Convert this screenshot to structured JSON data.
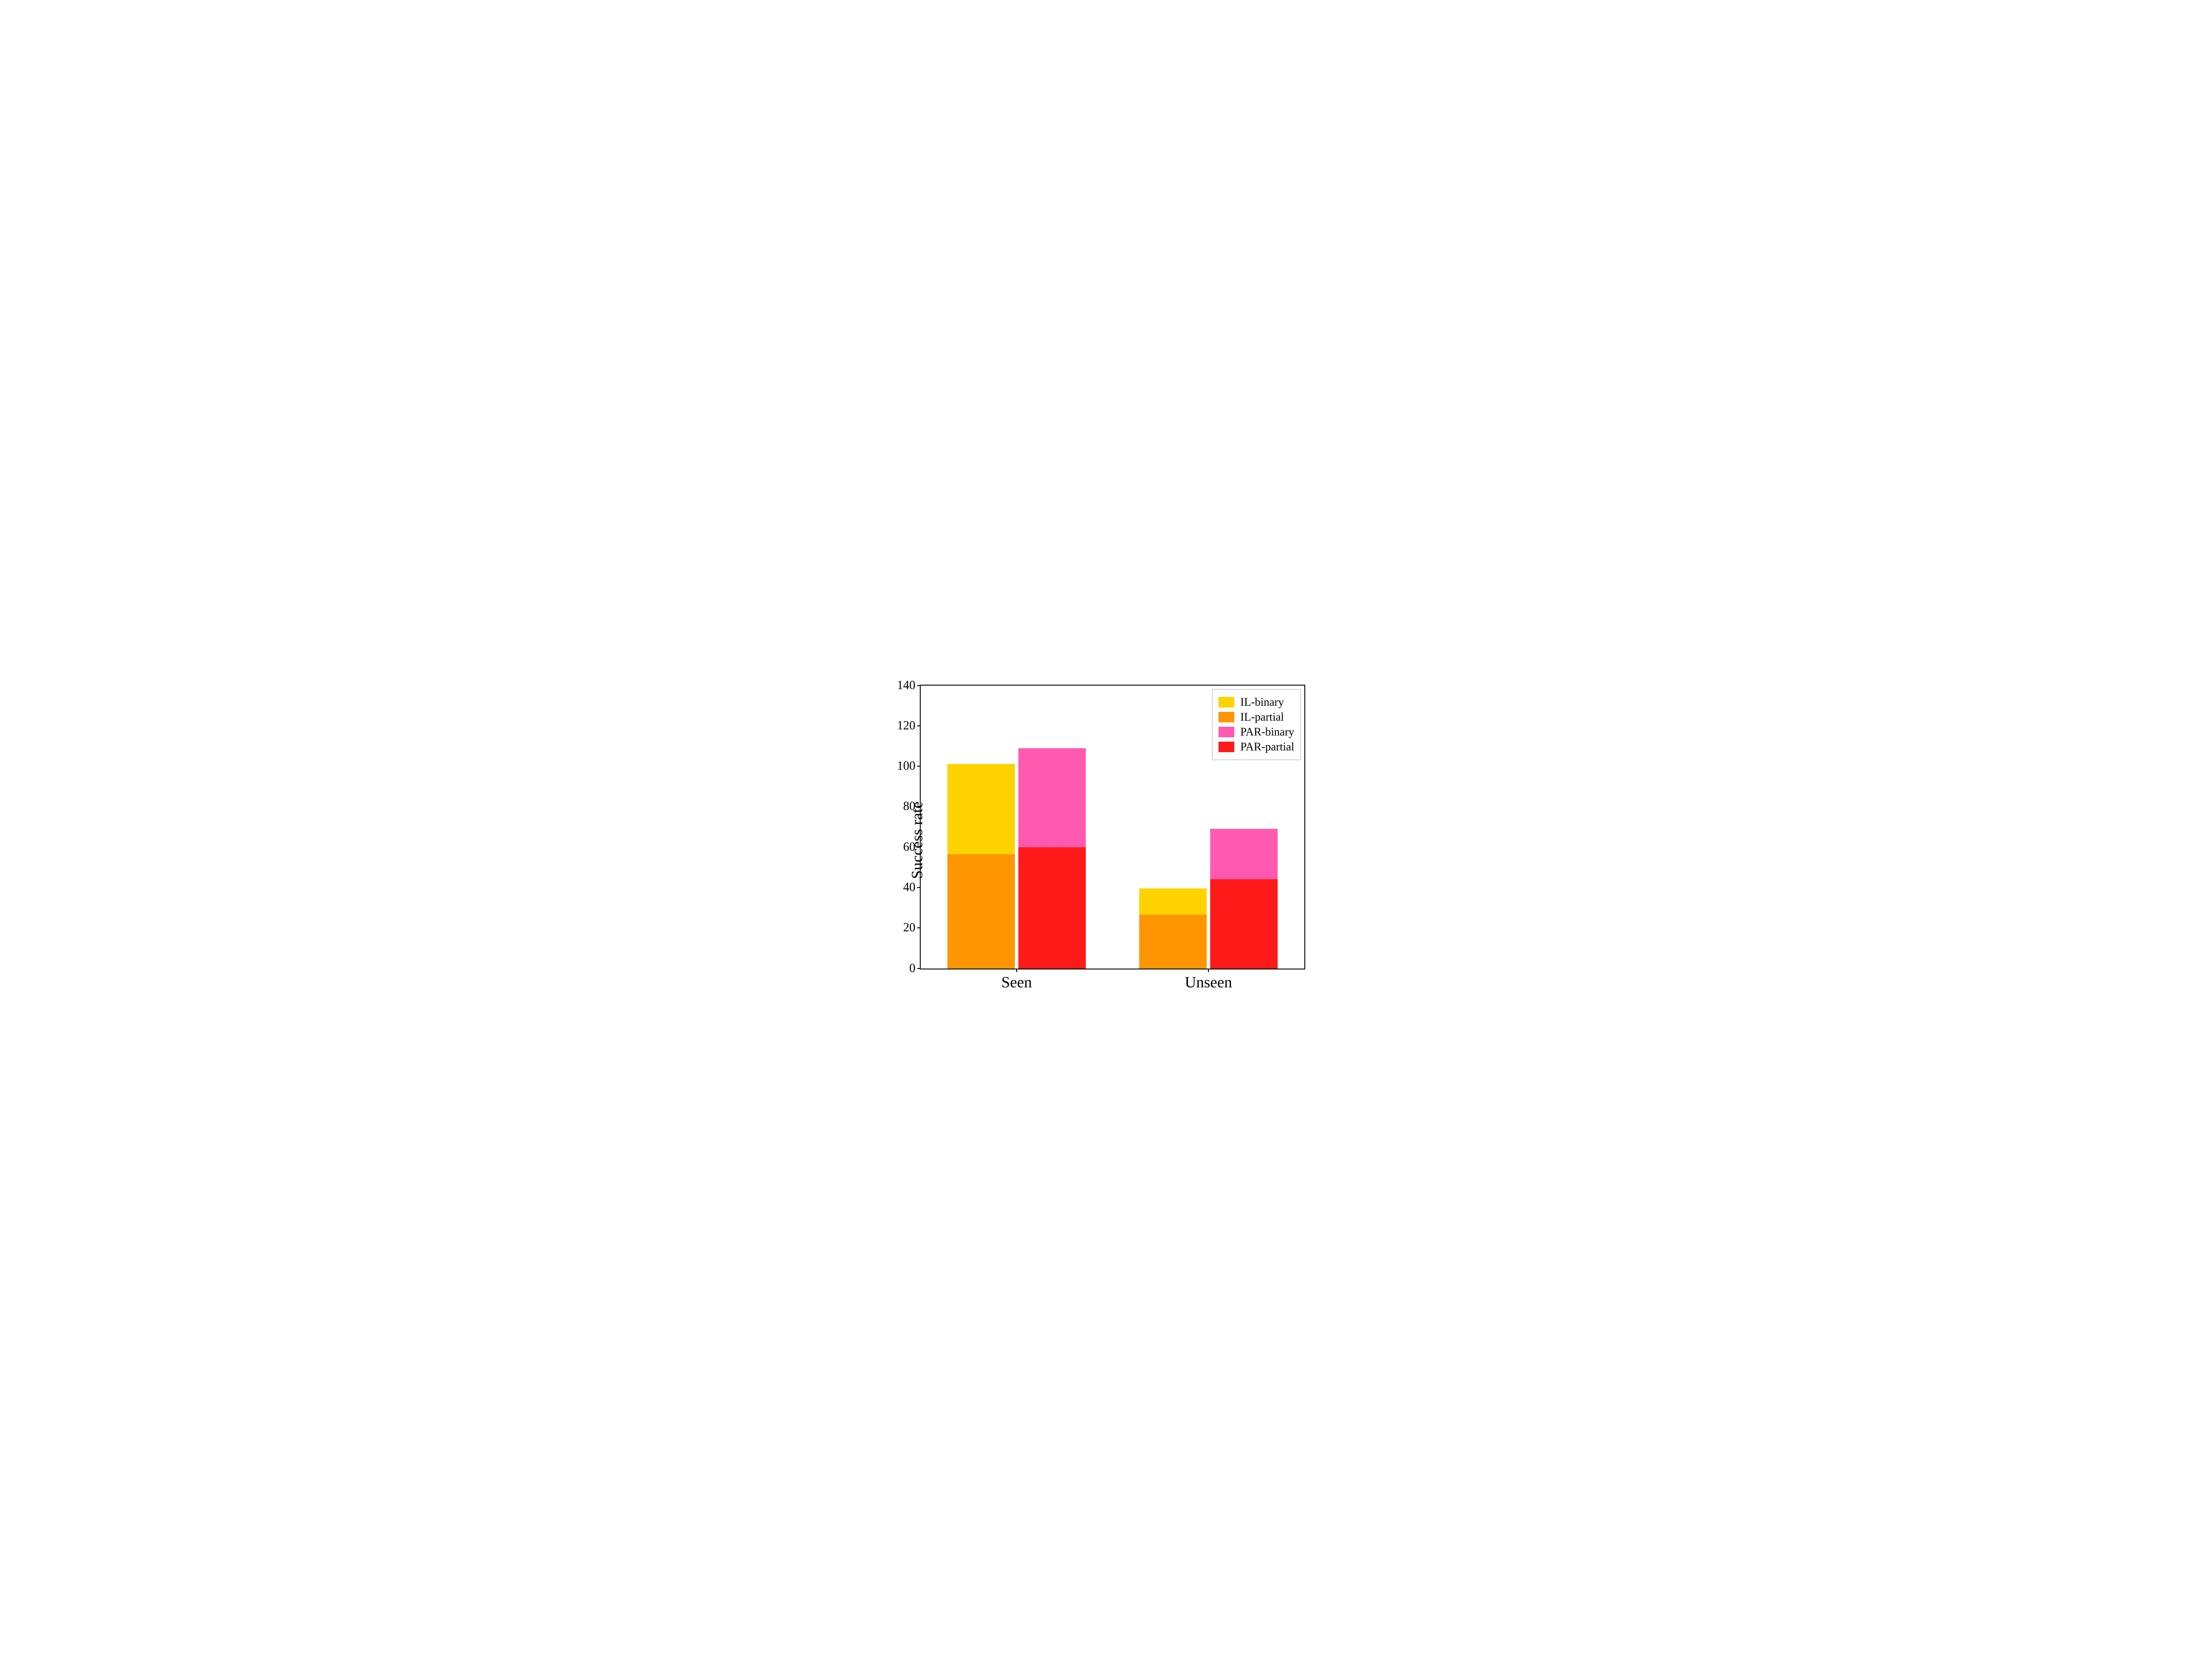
{
  "chart": {
    "type": "bar",
    "background_color": "#ffffff",
    "border_color": "#000000",
    "border_width": 2,
    "ylabel": "Success rate",
    "ylabel_fontsize": 36,
    "label_fontsize": 28,
    "xtick_fontsize": 36,
    "ylim": [
      0,
      140
    ],
    "ytick_step": 20,
    "yticks": [
      0,
      20,
      40,
      60,
      80,
      100,
      120,
      140
    ],
    "categories": [
      "Seen",
      "Unseen"
    ],
    "bar_width": 0.35,
    "group_gap": 0.02,
    "series": [
      {
        "name": "IL-binary",
        "color": "#ffd200",
        "values": [
          101,
          39.5
        ],
        "z": 1
      },
      {
        "name": "IL-partial",
        "color": "#ff9500",
        "values": [
          56.5,
          26.5
        ],
        "z": 2
      },
      {
        "name": "PAR-binary",
        "color": "#ff5ab0",
        "values": [
          109,
          69
        ],
        "z": 1
      },
      {
        "name": "PAR-partial",
        "color": "#ff1a1a",
        "values": [
          60,
          44
        ],
        "z": 2
      }
    ],
    "legend": {
      "position": "upper-right",
      "border_color": "#b0b0b0",
      "background_color": "#ffffff",
      "fontsize": 26
    }
  }
}
